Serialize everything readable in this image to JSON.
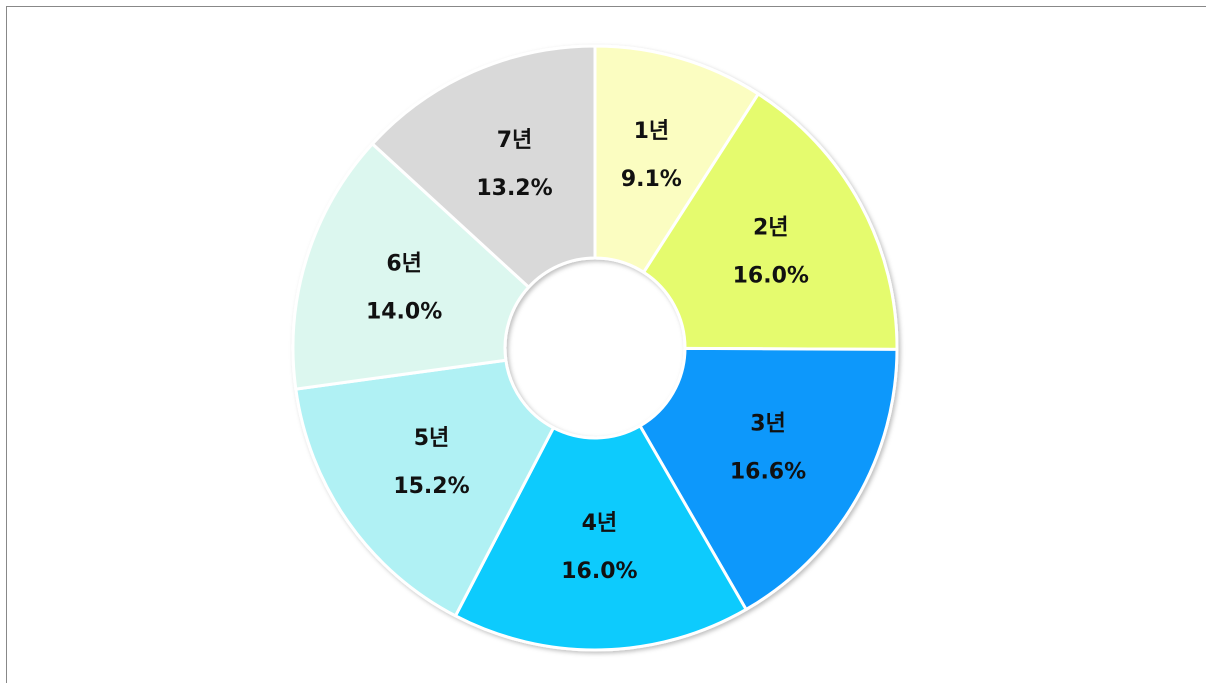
{
  "chart_data": {
    "type": "pie",
    "donut": true,
    "categories": [
      "1년",
      "2년",
      "3년",
      "4년",
      "5년",
      "6년",
      "7년"
    ],
    "values": [
      9.1,
      16.0,
      16.6,
      16.0,
      15.2,
      14.0,
      13.2
    ],
    "value_labels": [
      "9.1%",
      "16.0%",
      "16.6%",
      "16.0%",
      "15.2%",
      "14.0%",
      "13.2%"
    ],
    "colors": [
      "#fbfdc1",
      "#e5fb6e",
      "#0d98fb",
      "#0dcbfd",
      "#b0f1f4",
      "#dcf7ef",
      "#d9d9d9"
    ]
  }
}
